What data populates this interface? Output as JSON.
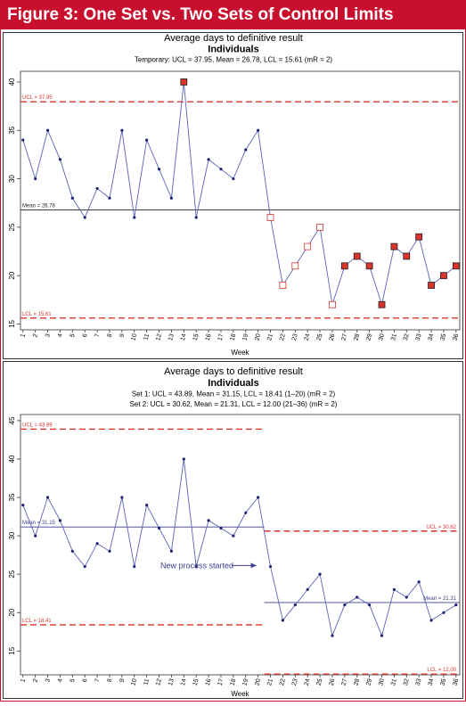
{
  "header": {
    "title": "Figure 3: One Set vs. Two Sets of Control Limits"
  },
  "chart_data": [
    {
      "type": "line",
      "title": "Average days to definitive result",
      "subtitle": "Individuals",
      "notes": [
        "Temporary: UCL = 37.95, Mean = 26.78, LCL = 15.61 (mR = 2)"
      ],
      "xlabel": "Week",
      "x": [
        1,
        2,
        3,
        4,
        5,
        6,
        7,
        8,
        9,
        10,
        11,
        12,
        13,
        14,
        15,
        16,
        17,
        18,
        19,
        20,
        21,
        22,
        23,
        24,
        25,
        26,
        27,
        28,
        29,
        30,
        31,
        32,
        33,
        34,
        35,
        36
      ],
      "xticks": [
        1,
        2,
        3,
        4,
        5,
        6,
        7,
        8,
        9,
        10,
        11,
        12,
        13,
        14,
        15,
        16,
        17,
        18,
        19,
        20,
        21,
        22,
        23,
        24,
        25,
        26,
        27,
        28,
        29,
        30,
        31,
        32,
        33,
        34,
        35,
        36
      ],
      "xlim": [
        0.8,
        36.3
      ],
      "ylim": [
        14.4,
        41.1
      ],
      "yticks": [
        15,
        20,
        25,
        30,
        35,
        40
      ],
      "series": [
        {
          "color": "#5a62b5",
          "values": [
            34,
            30,
            35,
            32,
            28,
            26,
            29,
            28,
            35,
            26,
            34,
            31,
            28,
            40,
            26,
            32,
            31,
            30,
            33,
            35,
            26,
            19,
            21,
            23,
            25,
            17,
            21,
            22,
            21,
            17,
            23,
            22,
            24,
            19,
            20,
            21
          ],
          "point_styles": [
            "dot",
            "dot",
            "dot",
            "dot",
            "dot",
            "dot",
            "dot",
            "dot",
            "dot",
            "dot",
            "dot",
            "dot",
            "dot",
            "filled",
            "dot",
            "dot",
            "dot",
            "dot",
            "dot",
            "dot",
            "open",
            "open",
            "open",
            "open",
            "open",
            "open",
            "filled",
            "filled",
            "filled",
            "filled",
            "filled",
            "filled",
            "filled",
            "filled",
            "filled",
            "filled"
          ]
        }
      ],
      "limits": [
        {
          "value": 37.95,
          "label": "UCL = 37.95",
          "weeks": [
            1,
            36
          ],
          "color": "#d9342b",
          "dashed": true,
          "label_side": "left"
        },
        {
          "value": 26.78,
          "label": "Mean = 26.78",
          "weeks": [
            1,
            36
          ],
          "color": "#222222",
          "dashed": false,
          "label_side": "left"
        },
        {
          "value": 15.61,
          "label": "LCL = 15.61",
          "weeks": [
            1,
            36
          ],
          "color": "#d9342b",
          "dashed": true,
          "label_side": "left"
        }
      ]
    },
    {
      "type": "line",
      "title": "Average days to definitive result",
      "subtitle": "Individuals",
      "notes": [
        "Set 1: UCL = 43.89, Mean = 31.15, LCL = 18.41 (1–20) (mR = 2)",
        "Set 2: UCL = 30.62, Mean = 21.31, LCL = 12.00 (21–36) (mR = 2)"
      ],
      "xlabel": "Week",
      "x": [
        1,
        2,
        3,
        4,
        5,
        6,
        7,
        8,
        9,
        10,
        11,
        12,
        13,
        14,
        15,
        16,
        17,
        18,
        19,
        20,
        21,
        22,
        23,
        24,
        25,
        26,
        27,
        28,
        29,
        30,
        31,
        32,
        33,
        34,
        35,
        36
      ],
      "xticks": [
        1,
        2,
        3,
        4,
        5,
        6,
        7,
        8,
        9,
        10,
        11,
        12,
        13,
        14,
        15,
        16,
        17,
        18,
        19,
        20,
        21,
        22,
        23,
        24,
        25,
        26,
        27,
        28,
        29,
        30,
        31,
        32,
        33,
        34,
        35,
        36
      ],
      "xlim": [
        0.8,
        36.3
      ],
      "ylim": [
        11.9,
        45.8
      ],
      "yticks": [
        15,
        20,
        25,
        30,
        35,
        40,
        45
      ],
      "annotation": "New process started",
      "series": [
        {
          "color": "#5a62b5",
          "values": [
            34,
            30,
            35,
            32,
            28,
            26,
            29,
            28,
            35,
            26,
            34,
            31,
            28,
            40,
            26,
            32,
            31,
            30,
            33,
            35,
            26,
            19,
            21,
            23,
            25,
            17,
            21,
            22,
            21,
            17,
            23,
            22,
            24,
            19,
            20,
            21
          ],
          "point_styles": [
            "dot",
            "dot",
            "dot",
            "dot",
            "dot",
            "dot",
            "dot",
            "dot",
            "dot",
            "dot",
            "dot",
            "dot",
            "dot",
            "dot",
            "dot",
            "dot",
            "dot",
            "dot",
            "dot",
            "dot",
            "dot",
            "dot",
            "dot",
            "dot",
            "dot",
            "dot",
            "dot",
            "dot",
            "dot",
            "dot",
            "dot",
            "dot",
            "dot",
            "dot",
            "dot",
            "dot"
          ]
        }
      ],
      "limits": [
        {
          "value": 43.89,
          "label": "UCL = 43.89",
          "weeks": [
            1,
            20
          ],
          "color": "#d9342b",
          "dashed": true,
          "label_side": "left"
        },
        {
          "value": 31.15,
          "label": "Mean = 31.15",
          "weeks": [
            1,
            20
          ],
          "color": "#3a3f8f",
          "dashed": false,
          "label_side": "left"
        },
        {
          "value": 18.41,
          "label": "LCL = 18.41",
          "weeks": [
            1,
            20
          ],
          "color": "#d9342b",
          "dashed": true,
          "label_side": "left"
        },
        {
          "value": 30.62,
          "label": "UCL = 30.62",
          "weeks": [
            21,
            36
          ],
          "color": "#d9342b",
          "dashed": true,
          "label_side": "right"
        },
        {
          "value": 21.31,
          "label": "Mean = 21.31",
          "weeks": [
            21,
            36
          ],
          "color": "#3a3f8f",
          "dashed": false,
          "label_side": "right"
        },
        {
          "value": 12.0,
          "label": "LCL = 12.00",
          "weeks": [
            21,
            36
          ],
          "color": "#d9342b",
          "dashed": true,
          "label_side": "right"
        }
      ]
    }
  ]
}
